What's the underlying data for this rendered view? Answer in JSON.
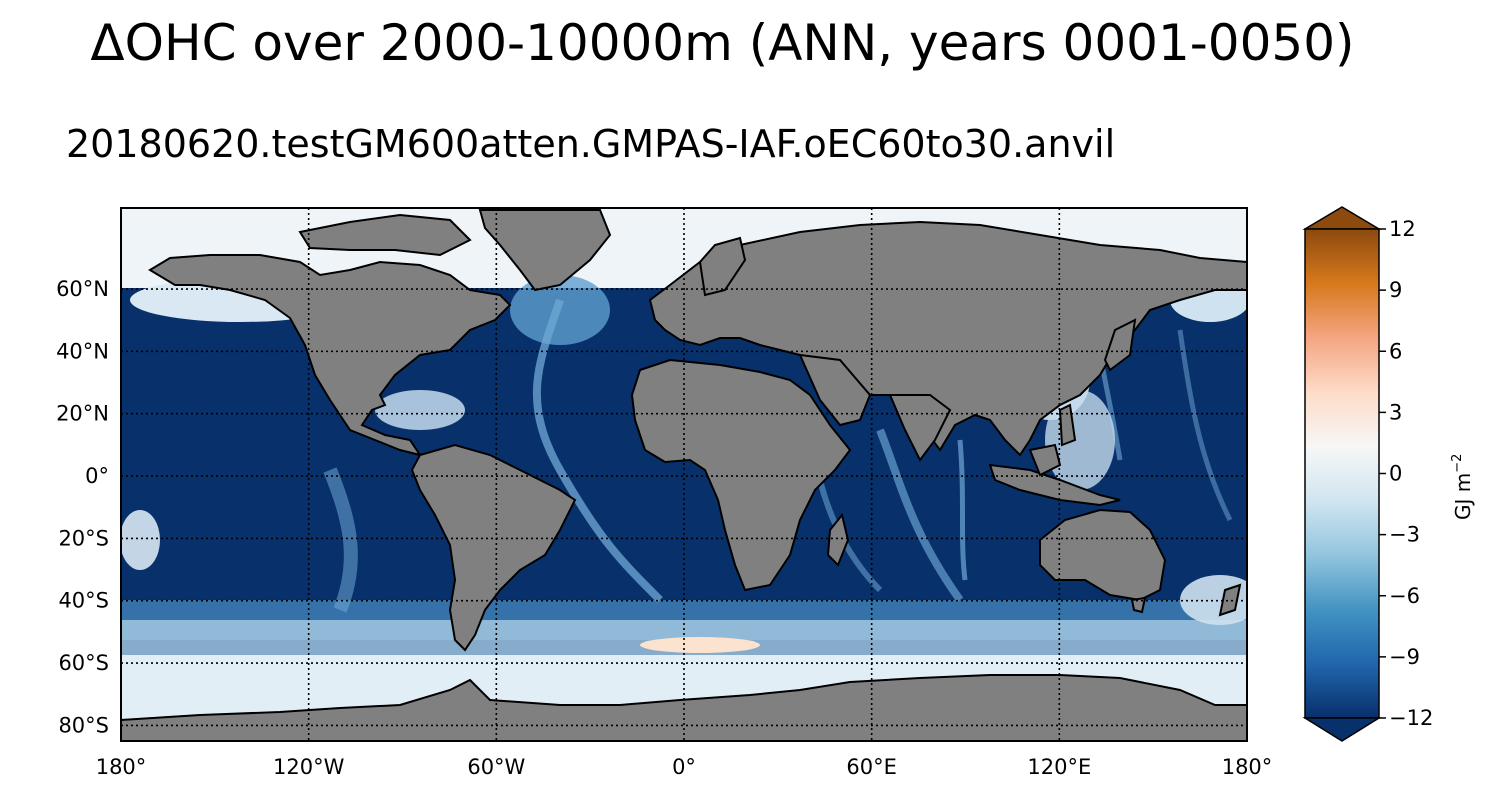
{
  "header": {
    "title": "ΔOHC over 2000-10000m (ANN, years 0001-0050)",
    "subtitle": "20180620.testGM600atten.GMPAS-IAF.oEC60to30.anvil"
  },
  "map": {
    "projection": "plate-carree",
    "lon_ticks": [
      "180°",
      "120°W",
      "60°W",
      "0°",
      "60°E",
      "120°E",
      "180°"
    ],
    "lat_ticks": [
      "60°N",
      "40°N",
      "20°N",
      "0°",
      "20°S",
      "40°S",
      "60°S",
      "80°S"
    ],
    "lon_values": [
      -180,
      -120,
      -60,
      0,
      60,
      120,
      180
    ],
    "lat_values": [
      60,
      40,
      20,
      0,
      -20,
      -40,
      -60,
      -80
    ],
    "lat_range": [
      -85,
      86
    ],
    "lon_range": [
      -180,
      180
    ],
    "grid": "dotted",
    "land_color": "#808080",
    "ocean_dominant_color": "#08306b"
  },
  "colorbar": {
    "label": "GJ m",
    "label_exponent": "−2",
    "ticks": [
      "12",
      "9",
      "6",
      "3",
      "0",
      "−3",
      "−6",
      "−9",
      "−12"
    ],
    "tick_values": [
      12,
      9,
      6,
      3,
      0,
      -3,
      -6,
      -9,
      -12
    ],
    "range": [
      -12,
      12
    ],
    "extend": "both",
    "colors_low_to_high": [
      "#08306b",
      "#2166ac",
      "#4393c3",
      "#92c5de",
      "#d1e5f0",
      "#f7f7f7",
      "#fddbc7",
      "#f4a582",
      "#d6791c",
      "#8c4a0e"
    ]
  }
}
